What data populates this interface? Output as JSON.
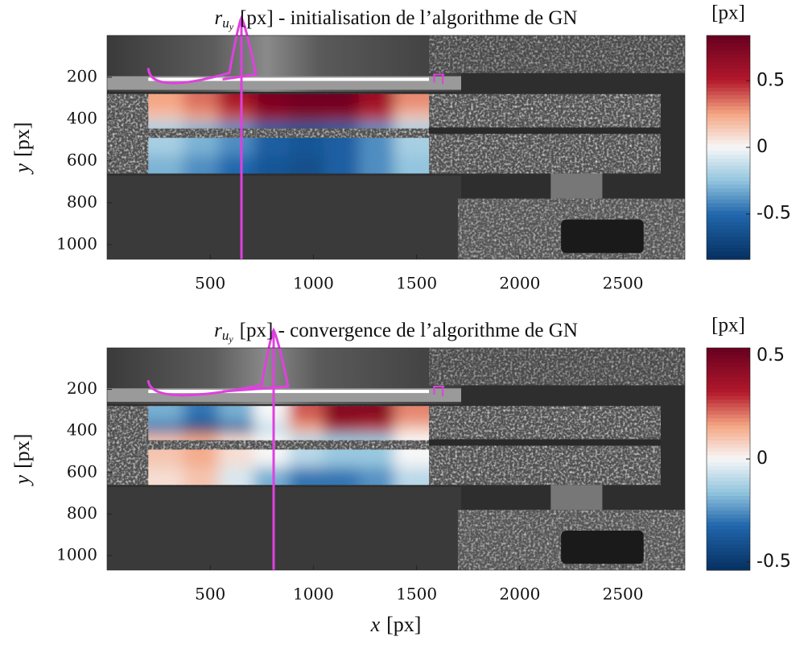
{
  "chart_data": [
    {
      "type": "heatmap",
      "title": {
        "symbol": "r",
        "sub": "u",
        "subsub": "y",
        "text": "[px] - initialisation de l’algorithme de GN"
      },
      "ylabel": {
        "symbol": "y",
        "text": "[px]"
      },
      "colorbar_label": "[px]",
      "colormap": "RdBu",
      "xlim": [
        0,
        2800
      ],
      "xticks": [
        500,
        1000,
        1500,
        2000,
        2500
      ],
      "ylim": [
        0,
        1070
      ],
      "yticks": [
        200,
        400,
        600,
        800,
        1000
      ],
      "clim": [
        -0.84,
        0.84
      ],
      "cticks": [
        -0.5,
        0,
        0.5
      ],
      "x": [
        285,
        455,
        625,
        795,
        965,
        1135,
        1305,
        1475
      ],
      "y": [
        322,
        404,
        532,
        618
      ],
      "z": [
        [
          0.25,
          0.35,
          0.55,
          0.75,
          0.8,
          0.8,
          0.6,
          0.3
        ],
        [
          0.15,
          0.25,
          0.4,
          0.6,
          0.7,
          0.65,
          0.45,
          0.15
        ],
        [
          -0.2,
          -0.3,
          -0.4,
          -0.55,
          -0.6,
          -0.55,
          -0.4,
          -0.2
        ],
        [
          -0.3,
          -0.4,
          -0.5,
          -0.6,
          -0.65,
          -0.55,
          -0.4,
          -0.25
        ]
      ]
    },
    {
      "type": "heatmap",
      "title": {
        "symbol": "r",
        "sub": "u",
        "subsub": "y",
        "text": "[px] - convergence de l’algorithme de GN"
      },
      "xlabel": {
        "symbol": "x",
        "text": "[px]"
      },
      "ylabel": {
        "symbol": "y",
        "text": "[px]"
      },
      "colorbar_label": "[px]",
      "colormap": "RdBu",
      "xlim": [
        0,
        2800
      ],
      "xticks": [
        500,
        1000,
        1500,
        2000,
        2500
      ],
      "ylim": [
        0,
        1070
      ],
      "yticks": [
        200,
        400,
        600,
        800,
        1000
      ],
      "clim": [
        -0.54,
        0.54
      ],
      "cticks": [
        -0.5,
        0,
        0.5
      ],
      "x": [
        285,
        455,
        625,
        795,
        965,
        1135,
        1305,
        1475
      ],
      "y": [
        322,
        404,
        532,
        618
      ],
      "z": [
        [
          -0.2,
          -0.3,
          -0.2,
          0,
          0.25,
          0.45,
          0.45,
          0.2
        ],
        [
          -0.35,
          -0.5,
          -0.4,
          -0.1,
          0.15,
          0.35,
          0.3,
          0.1
        ],
        [
          0.1,
          0.15,
          0.05,
          0,
          -0.1,
          -0.15,
          -0.15,
          0
        ],
        [
          0.05,
          0.1,
          -0.05,
          -0.2,
          -0.3,
          -0.3,
          -0.25,
          -0.1
        ]
      ]
    }
  ]
}
